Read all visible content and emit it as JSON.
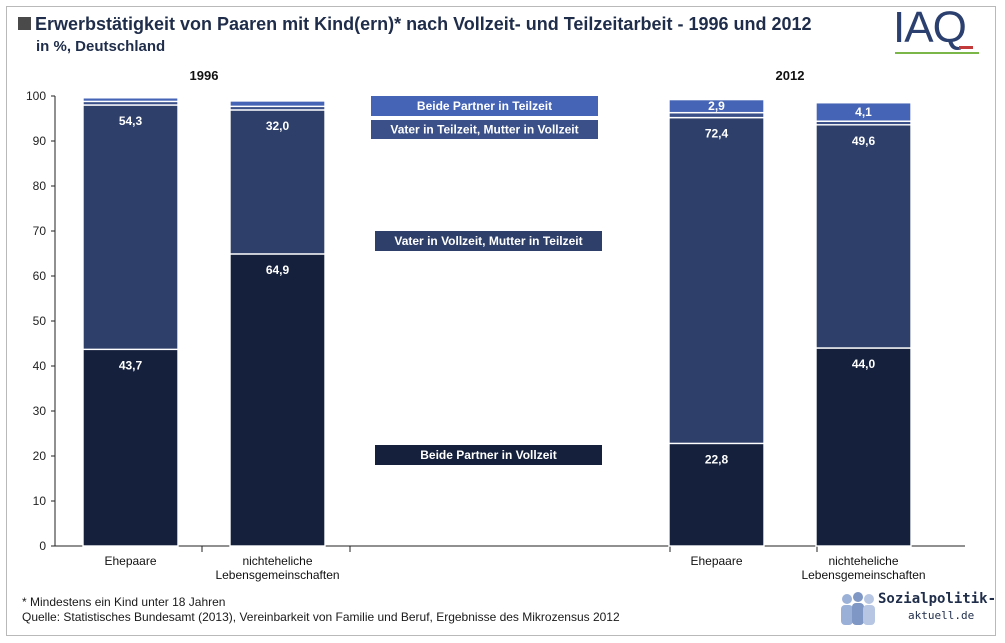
{
  "header": {
    "title": "Erwerbstätigkeit von Paaren mit Kind(ern)* nach Vollzeit- und Teilzeitarbeit  - 1996 und 2012",
    "subtitle": "in %, Deutschland",
    "logo_text": "IAQ"
  },
  "footer": {
    "footnote": "* Mindestens ein Kind unter 18 Jahren",
    "source": "Quelle: Statistisches Bundesamt (2013), Vereinbarkeit von Familie und Beruf, Ergebnisse des Mikrozensus 2012",
    "brand_name": "Sozialpolitik-",
    "brand_domain": "aktuell.de"
  },
  "colors": {
    "full_full": "#15203d",
    "father_full_mother_part": "#2e3f6a",
    "father_part_mother_full": "#3b5088",
    "both_part": "#4564b5"
  },
  "chart_data": {
    "type": "bar",
    "stacked": true,
    "ylim": [
      0,
      100
    ],
    "yticks": [
      0,
      10,
      20,
      30,
      40,
      50,
      60,
      70,
      80,
      90,
      100
    ],
    "grid": false,
    "groups": [
      {
        "label": "1996",
        "categories": [
          "Ehepaare",
          "nichteheliche Lebensgemeinschaften"
        ]
      },
      {
        "label": "2012",
        "categories": [
          "Ehepaare",
          "nichteheliche Lebensgemeinschaften"
        ]
      }
    ],
    "categories": [
      "Ehepaare",
      "nichteheliche Lebensgemeinschaften",
      "Ehepaare",
      "nichteheliche Lebensgemeinschaften"
    ],
    "series": [
      {
        "name": "Beide Partner in Vollzeit",
        "values": [
          43.7,
          64.9,
          22.8,
          44.0
        ],
        "labels": [
          "43,7",
          "64,9",
          "22,8",
          "44,0"
        ]
      },
      {
        "name": "Vater in Vollzeit, Mutter in Teilzeit",
        "values": [
          54.3,
          32.0,
          72.4,
          49.6
        ],
        "labels": [
          "54,3",
          "32,0",
          "72,4",
          "49,6"
        ]
      },
      {
        "name": "Vater in Teilzeit, Mutter in Vollzeit",
        "values": [
          0.8,
          0.8,
          1.1,
          0.8
        ],
        "labels": [
          "",
          "",
          "",
          ""
        ]
      },
      {
        "name": "Beide Partner in Teilzeit",
        "values": [
          0.8,
          1.2,
          2.9,
          4.1
        ],
        "labels": [
          "",
          "",
          "2,9",
          "4,1"
        ]
      }
    ]
  }
}
